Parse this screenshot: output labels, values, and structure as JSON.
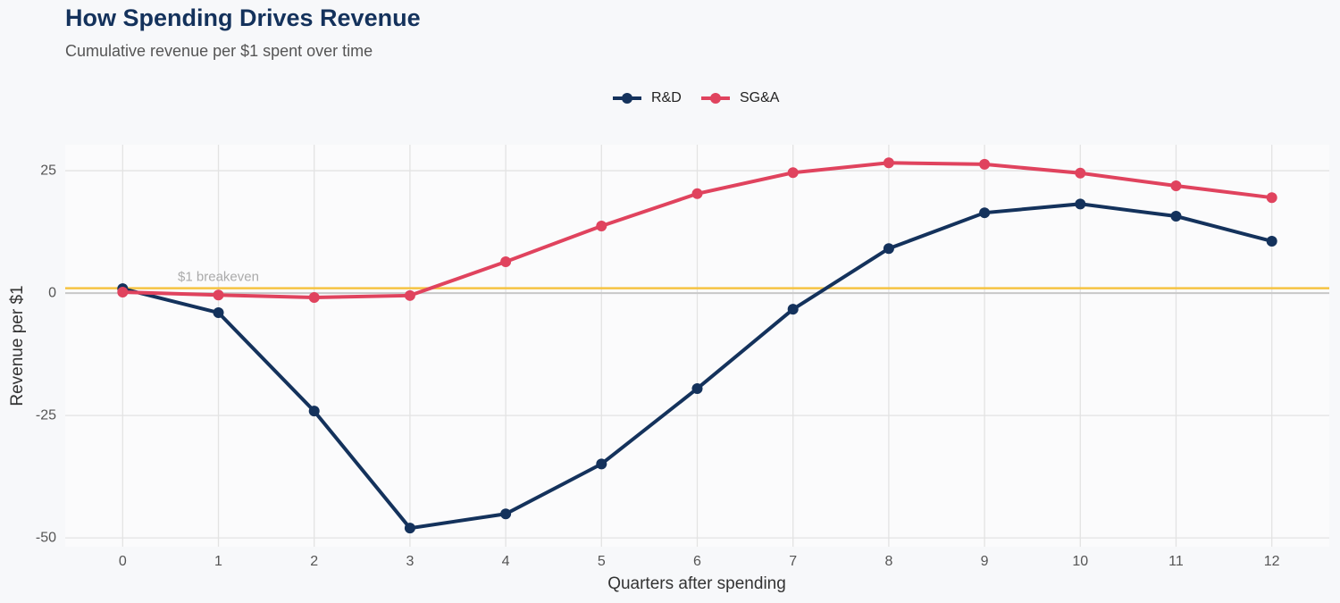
{
  "chart_data": {
    "type": "line",
    "title": "How Spending Drives Revenue",
    "subtitle": "Cumulative revenue per $1 spent over time",
    "x_label": "Quarters after spending",
    "y_label": "Revenue per $1",
    "x": [
      0,
      1,
      2,
      3,
      4,
      5,
      6,
      7,
      8,
      9,
      10,
      11,
      12
    ],
    "series": [
      {
        "name": "R&D",
        "color": "#14325c",
        "values": [
          0.9,
          -4,
          -24.1,
          -48,
          -45.1,
          -34.9,
          -19.5,
          -3.3,
          9.1,
          16.4,
          18.2,
          15.7,
          10.6
        ]
      },
      {
        "name": "SG&A",
        "color": "#e0435e",
        "values": [
          0.2,
          -0.4,
          -0.9,
          -0.5,
          6.4,
          13.7,
          20.3,
          24.6,
          26.6,
          26.3,
          24.5,
          21.9,
          19.5
        ]
      }
    ],
    "reference_line": {
      "value": 1,
      "label": "$1 breakeven",
      "color": "#f5c342",
      "label_x": 1
    },
    "xlim": [
      -0.6,
      12.6
    ],
    "ylim": [
      -51.8,
      30.3
    ],
    "xticks": [
      0,
      1,
      2,
      3,
      4,
      5,
      6,
      7,
      8,
      9,
      10,
      11,
      12
    ],
    "yticks": [
      -50,
      -25,
      0,
      25
    ],
    "grid": true,
    "legend": "top"
  }
}
